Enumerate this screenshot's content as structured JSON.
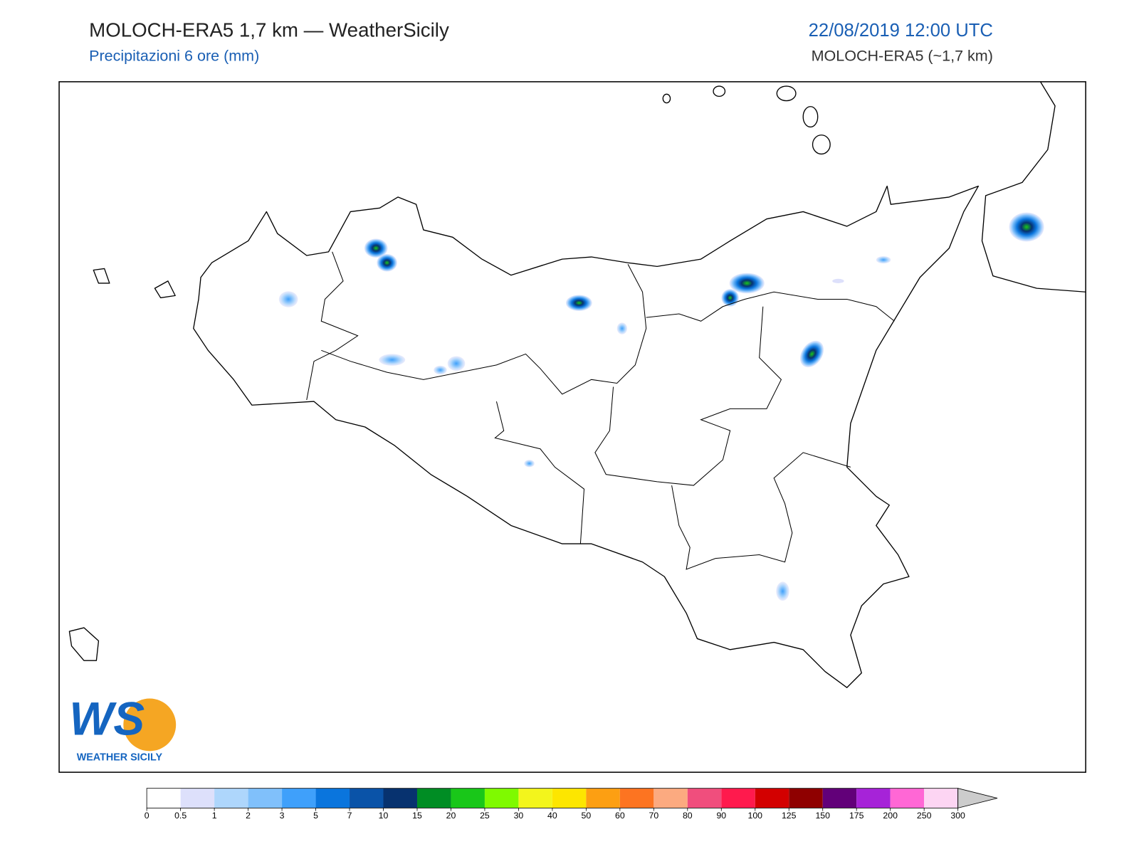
{
  "header": {
    "title": "MOLOCH-ERA5 1,7 km — WeatherSicily",
    "subtitle": "Precipitazioni 6 ore (mm)",
    "datetime": "22/08/2019 12:00 UTC",
    "model": "MOLOCH-ERA5 (~1,7 km)"
  },
  "logo": {
    "letters": "WS",
    "text": "WEATHER SICILY"
  },
  "colorbar": {
    "levels": [
      0,
      0.5,
      1,
      2,
      3,
      5,
      7,
      10,
      15,
      20,
      25,
      30,
      40,
      50,
      60,
      70,
      80,
      90,
      100,
      125,
      150,
      175,
      200,
      250,
      300
    ],
    "colors": [
      "#ffffff",
      "#dde0fb",
      "#aed6fc",
      "#80c0fb",
      "#3fa0fb",
      "#0a75dd",
      "#0a53a8",
      "#07326f",
      "#008d24",
      "#19c719",
      "#7ffa00",
      "#f3f51c",
      "#fde600",
      "#fd9f12",
      "#fd7421",
      "#fcaa80",
      "#f04e7d",
      "#ff1a4d",
      "#d30000",
      "#8f0000",
      "#620079",
      "#a623d8",
      "#ff67d5",
      "#fdd5f3"
    ],
    "extend_color": "#cccccc"
  }
}
